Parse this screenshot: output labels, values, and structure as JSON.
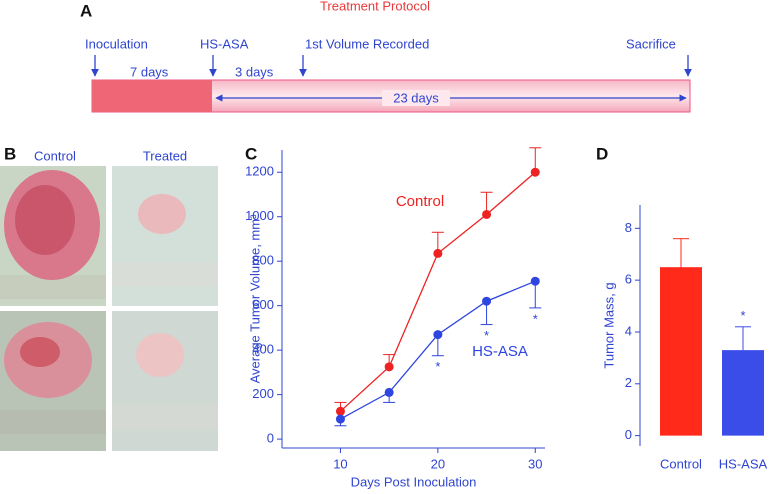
{
  "panel_a": {
    "letter": "A",
    "title": "Treatment Protocol",
    "events": [
      "Inoculation",
      "HS-ASA",
      "1st Volume Recorded",
      "Sacrifice"
    ],
    "intervals": [
      "7 days",
      "3 days",
      "23 days"
    ]
  },
  "panel_b": {
    "letter": "B",
    "columns": [
      "Control",
      "Treated"
    ]
  },
  "chart_data": [
    {
      "type": "line",
      "letter": "C",
      "xlabel": "Days Post Inoculation",
      "ylabel": "Average Tumor Volume, mm³",
      "x": [
        10,
        15,
        20,
        25,
        30
      ],
      "xlim": [
        4,
        31
      ],
      "xticks": [
        10,
        20,
        30
      ],
      "ylim": [
        -40,
        1300
      ],
      "yticks": [
        0,
        200,
        400,
        600,
        800,
        1000,
        1200
      ],
      "series": [
        {
          "name": "Control",
          "color": "#ee2222",
          "values": [
            125,
            325,
            835,
            1010,
            1200
          ],
          "errors": [
            40,
            55,
            95,
            100,
            110
          ],
          "error_direction": "up"
        },
        {
          "name": "HS-ASA",
          "color": "#2f45e0",
          "values": [
            90,
            210,
            470,
            620,
            710
          ],
          "errors": [
            30,
            45,
            95,
            105,
            120
          ],
          "error_direction": "down"
        }
      ],
      "annotations": [
        {
          "text": "*",
          "x": 20,
          "series": "HS-ASA"
        },
        {
          "text": "*",
          "x": 25,
          "series": "HS-ASA"
        },
        {
          "text": "*",
          "x": 30,
          "series": "HS-ASA"
        }
      ]
    },
    {
      "type": "bar",
      "letter": "D",
      "ylabel": "Tumor Mass, g",
      "categories": [
        "Control",
        "HS-ASA"
      ],
      "values": [
        6.5,
        3.3
      ],
      "errors": [
        1.1,
        0.9
      ],
      "colors": [
        "#ff2a1a",
        "#3b4de8"
      ],
      "ylim": [
        -0.4,
        8.9
      ],
      "yticks": [
        0,
        2,
        4,
        6,
        8
      ],
      "annotations": [
        {
          "text": "*",
          "category": "HS-ASA"
        }
      ]
    }
  ]
}
